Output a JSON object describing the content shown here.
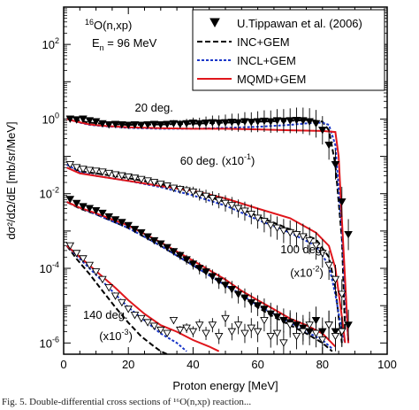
{
  "chart_data": {
    "type": "scatter",
    "reaction": "O(n,xp)",
    "isotope": "16",
    "energy_main": "E",
    "energy_sub": "n",
    "energy_value": " = 96 MeV",
    "xlabel": "Proton energy [MeV]",
    "ylabel": "dσ²/dΩ/dE [mb/sr/MeV]",
    "xlim": [
      0,
      100
    ],
    "ylim": [
      5e-07,
      1000
    ],
    "yscale": "log",
    "x_ticks": [
      0,
      20,
      40,
      60,
      80,
      100
    ],
    "y_ticks": [
      {
        "value": 1e-06,
        "mantissa": "10",
        "exponent": "-6"
      },
      {
        "value": 0.0001,
        "mantissa": "10",
        "exponent": "-4"
      },
      {
        "value": 0.01,
        "mantissa": "10",
        "exponent": "-2"
      },
      {
        "value": 1,
        "mantissa": "10",
        "exponent": "0"
      },
      {
        "value": 100,
        "mantissa": "10",
        "exponent": "2"
      }
    ],
    "legend_position": "top-right",
    "legend": [
      {
        "label": "U.Tippawan et al. (2006)",
        "kind": "marker"
      },
      {
        "label": "INC+GEM",
        "kind": "line",
        "color": "#000000",
        "dash": "6,3"
      },
      {
        "label": "INCL+GEM",
        "kind": "line",
        "color": "#1a36c8",
        "dash": "3,2"
      },
      {
        "label": "MQMD+GEM",
        "kind": "line",
        "color": "#e0161c",
        "dash": ""
      }
    ],
    "annotations": [
      {
        "text": "20 deg.",
        "x": 22,
        "y": 1.6
      },
      {
        "text": "60 deg. (x10",
        "sup": "-1",
        "tail": ")",
        "x": 36,
        "y": 0.06
      },
      {
        "text": "100 deg.",
        "x": 67,
        "y": 0.00025
      },
      {
        "text": "(x10",
        "sup": "-2",
        "tail": ")",
        "x": 70,
        "y": 6e-05
      },
      {
        "text": "140 deg.",
        "x": 6,
        "y": 4.5e-06
      },
      {
        "text": "(x10",
        "sup": "-3",
        "tail": ")",
        "x": 11,
        "y": 1.2e-06
      }
    ],
    "series": [
      {
        "name": "20 deg.",
        "experiment": {
          "x": [
            2,
            4,
            6,
            8,
            10,
            12,
            14,
            16,
            18,
            20,
            22,
            24,
            26,
            28,
            30,
            32,
            34,
            36,
            38,
            40,
            42,
            44,
            46,
            48,
            50,
            52,
            54,
            56,
            58,
            60,
            62,
            64,
            66,
            68,
            70,
            72,
            74,
            76,
            78,
            80,
            82,
            84,
            86,
            88
          ],
          "y": [
            1.0,
            0.95,
            1.0,
            0.9,
            0.85,
            0.75,
            0.7,
            0.72,
            0.7,
            0.68,
            0.7,
            0.68,
            0.7,
            0.72,
            0.7,
            0.72,
            0.75,
            0.72,
            0.75,
            0.78,
            0.75,
            0.78,
            0.8,
            0.78,
            0.8,
            0.82,
            0.8,
            0.85,
            0.82,
            0.85,
            0.88,
            0.85,
            0.9,
            0.88,
            0.9,
            0.92,
            0.9,
            0.85,
            0.75,
            0.5,
            0.2,
            0.06,
            0.006,
            0.0008
          ]
        },
        "models": [
          {
            "name": "INC+GEM",
            "x": [
              1,
              3,
              5,
              8,
              12,
              20,
              30,
              40,
              50,
              60,
              70,
              76,
              80,
              82,
              84,
              85,
              86,
              87
            ],
            "y": [
              1.1,
              1.0,
              0.9,
              0.8,
              0.75,
              0.7,
              0.72,
              0.75,
              0.8,
              0.85,
              0.9,
              0.95,
              0.85,
              0.5,
              0.06,
              0.006,
              0.0006,
              2e-06
            ]
          },
          {
            "name": "INCL+GEM",
            "x": [
              1,
              3,
              5,
              8,
              12,
              20,
              30,
              40,
              50,
              60,
              70,
              76,
              80,
              82,
              84,
              86,
              87,
              88
            ],
            "y": [
              1.0,
              0.9,
              0.8,
              0.7,
              0.65,
              0.58,
              0.55,
              0.55,
              0.58,
              0.62,
              0.7,
              0.78,
              0.8,
              0.7,
              0.2,
              0.001,
              2e-05,
              1e-06
            ]
          },
          {
            "name": "MQMD+GEM",
            "x": [
              1,
              3,
              5,
              8,
              12,
              20,
              30,
              40,
              50,
              60,
              70,
              80,
              84,
              85,
              86,
              87,
              88
            ],
            "y": [
              1.0,
              0.9,
              0.82,
              0.72,
              0.66,
              0.6,
              0.57,
              0.55,
              0.55,
              0.53,
              0.5,
              0.48,
              0.45,
              0.1,
              0.002,
              5e-05,
              1e-06
            ]
          }
        ]
      },
      {
        "name": "60 deg. (x10^-1)",
        "experiment": {
          "x": [
            2,
            4,
            6,
            8,
            10,
            12,
            14,
            16,
            18,
            20,
            22,
            24,
            26,
            28,
            30,
            32,
            34,
            36,
            38,
            40,
            42,
            44,
            46,
            48,
            50,
            52,
            54,
            56,
            58,
            60,
            62,
            64,
            66,
            68,
            70,
            72,
            74,
            76,
            78,
            80,
            82,
            84,
            86
          ],
          "y": [
            0.06,
            0.05,
            0.045,
            0.042,
            0.04,
            0.038,
            0.035,
            0.032,
            0.03,
            0.028,
            0.026,
            0.024,
            0.022,
            0.02,
            0.018,
            0.016,
            0.014,
            0.013,
            0.012,
            0.011,
            0.0095,
            0.0085,
            0.0075,
            0.0065,
            0.0055,
            0.0048,
            0.004,
            0.0034,
            0.0028,
            0.0022,
            0.0018,
            0.0014,
            0.0012,
            0.001,
            0.0009,
            0.0008,
            0.0007,
            0.00055,
            0.0004,
            0.00025,
            0.00012,
            5e-05,
            2e-05
          ]
        },
        "models": [
          {
            "name": "INC+GEM",
            "x": [
              1,
              5,
              10,
              20,
              30,
              40,
              50,
              60,
              70,
              78,
              82,
              84,
              85,
              86
            ],
            "y": [
              0.06,
              0.04,
              0.035,
              0.026,
              0.018,
              0.011,
              0.006,
              0.0025,
              0.0011,
              0.0006,
              0.0002,
              3e-05,
              5e-06,
              1e-06
            ]
          },
          {
            "name": "INCL+GEM",
            "x": [
              1,
              5,
              10,
              20,
              30,
              40,
              50,
              60,
              70,
              78,
              82,
              84,
              86,
              87
            ],
            "y": [
              0.06,
              0.038,
              0.03,
              0.022,
              0.015,
              0.009,
              0.0048,
              0.002,
              0.0009,
              0.0004,
              0.00012,
              2e-05,
              2e-06,
              1e-06
            ]
          },
          {
            "name": "MQMD+GEM",
            "x": [
              1,
              5,
              10,
              20,
              30,
              40,
              50,
              60,
              70,
              78,
              82,
              84,
              86,
              87
            ],
            "y": [
              0.05,
              0.035,
              0.03,
              0.022,
              0.016,
              0.012,
              0.0075,
              0.004,
              0.0022,
              0.0009,
              0.0004,
              0.0001,
              5e-06,
              1e-06
            ]
          }
        ]
      },
      {
        "name": "100 deg. (x10^-2)",
        "experiment": {
          "x": [
            2,
            4,
            6,
            8,
            10,
            12,
            14,
            16,
            18,
            20,
            22,
            24,
            26,
            28,
            30,
            32,
            34,
            36,
            38,
            40,
            42,
            44,
            46,
            48,
            50,
            52,
            54,
            56,
            58,
            60,
            62,
            64,
            66,
            68,
            70,
            72,
            74,
            76,
            78,
            80,
            82,
            84,
            86,
            88
          ],
          "y": [
            0.007,
            0.0055,
            0.0045,
            0.004,
            0.0035,
            0.003,
            0.0024,
            0.002,
            0.0017,
            0.0014,
            0.0011,
            0.0009,
            0.0007,
            0.00055,
            0.00045,
            0.00036,
            0.00028,
            0.00022,
            0.00017,
            0.00013,
            0.0001,
            8e-05,
            6e-05,
            4.5e-05,
            3.5e-05,
            2.7e-05,
            2e-05,
            1.6e-05,
            1.2e-05,
            1e-05,
            8e-06,
            6e-06,
            5e-06,
            4e-06,
            3.5e-06,
            3e-06,
            2.5e-06,
            2e-06,
            4e-06,
            2e-06,
            3e-06,
            2e-06,
            2e-06,
            3e-06
          ]
        },
        "models": [
          {
            "name": "INC+GEM",
            "x": [
              1,
              5,
              10,
              20,
              30,
              40,
              50,
              55,
              60,
              65,
              70,
              75,
              80,
              83
            ],
            "y": [
              0.006,
              0.004,
              0.0028,
              0.0012,
              0.0004,
              0.00012,
              3.5e-05,
              1.8e-05,
              9e-06,
              5e-06,
              3e-06,
              1.8e-06,
              1e-06,
              6e-07
            ]
          },
          {
            "name": "INCL+GEM",
            "x": [
              1,
              5,
              10,
              20,
              30,
              40,
              50,
              55,
              60,
              65,
              70,
              75,
              80,
              83
            ],
            "y": [
              0.006,
              0.0042,
              0.0028,
              0.0012,
              0.0004,
              0.00012,
              3.5e-05,
              2e-05,
              1e-05,
              6e-06,
              3.5e-06,
              2e-06,
              1.2e-06,
              7e-07
            ]
          },
          {
            "name": "MQMD+GEM",
            "x": [
              1,
              5,
              10,
              20,
              30,
              40,
              50,
              55,
              60,
              65,
              70,
              75,
              80,
              84
            ],
            "y": [
              0.006,
              0.0042,
              0.003,
              0.0014,
              0.0005,
              0.00016,
              5e-05,
              2.5e-05,
              1.4e-05,
              8e-06,
              4.5e-06,
              3e-06,
              1.8e-06,
              8e-07
            ]
          }
        ]
      },
      {
        "name": "140 deg. (x10^-3)",
        "experiment": {
          "x": [
            2,
            4,
            6,
            8,
            10,
            12,
            14,
            16,
            18,
            20,
            22,
            24,
            26,
            28,
            30,
            32,
            34,
            36,
            38,
            40,
            42,
            44,
            46,
            48,
            50,
            52,
            54,
            56,
            58,
            60,
            62,
            64,
            66,
            68,
            70,
            72,
            74,
            76,
            78,
            80,
            82,
            84,
            86
          ],
          "y": [
            0.0004,
            0.00025,
            0.00018,
            0.00012,
            8e-05,
            5e-05,
            3e-05,
            1.8e-05,
            1.2e-05,
            8e-06,
            5.5e-06,
            4.5e-06,
            3.5e-06,
            2.8e-06,
            2.2e-06,
            1.8e-06,
            4e-06,
            2.2e-06,
            2.5e-06,
            2e-06,
            3e-06,
            1.8e-06,
            3e-06,
            1.5e-06,
            4.5e-06,
            2e-06,
            3e-06,
            1.8e-06,
            2.5e-06,
            2e-06,
            4e-06,
            1.5e-06,
            1.8e-06,
            1e-06,
            3e-06,
            1.5e-06,
            2e-06,
            3e-06,
            1.8e-06,
            1.2e-06,
            3e-06,
            1.5e-06,
            2e-06
          ]
        },
        "models": [
          {
            "name": "INC+GEM",
            "x": [
              1,
              4,
              8,
              12,
              16,
              20,
              24,
              28,
              30,
              32
            ],
            "y": [
              0.0004,
              0.00018,
              7e-05,
              2.5e-05,
              9e-06,
              3.5e-06,
              1.5e-06,
              8e-07,
              6e-07,
              5e-07
            ]
          },
          {
            "name": "INCL+GEM",
            "x": [
              1,
              4,
              8,
              12,
              16,
              20,
              25,
              30,
              35,
              38
            ],
            "y": [
              0.0004,
              0.00022,
              0.0001,
              4.5e-05,
              2e-05,
              9e-06,
              4e-06,
              1.8e-06,
              1e-06,
              6e-07
            ]
          },
          {
            "name": "MQMD+GEM",
            "x": [
              1,
              4,
              8,
              12,
              16,
              20,
              25,
              30,
              35,
              40,
              45,
              48
            ],
            "y": [
              0.0004,
              0.00024,
              0.00012,
              6e-05,
              3e-05,
              1.4e-05,
              6e-06,
              3e-06,
              2e-06,
              1.2e-06,
              8e-07,
              6e-07
            ]
          }
        ]
      }
    ]
  },
  "caption": {
    "text": "Fig. 5.  Double-differential cross sections of ¹⁶O(n,xp) reaction..."
  }
}
